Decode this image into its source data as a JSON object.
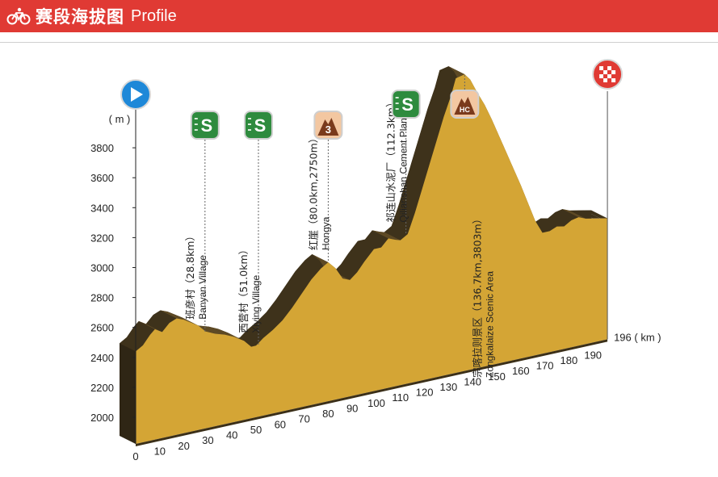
{
  "header": {
    "title_cn": "赛段海拔图",
    "title_en": "Profile",
    "bg_color": "#e03a34"
  },
  "chart_data": {
    "type": "area",
    "title": "赛段海拔图 Profile",
    "ylabel": "( m )",
    "xlabel": "( km )",
    "total_distance_label": "196",
    "ylim": [
      1850,
      3850
    ],
    "xlim": [
      0,
      196
    ],
    "yticks": [
      2000,
      2200,
      2400,
      2600,
      2800,
      3000,
      3200,
      3400,
      3600,
      3800
    ],
    "xticks": [
      0,
      10,
      20,
      30,
      40,
      50,
      60,
      70,
      80,
      90,
      100,
      110,
      120,
      130,
      140,
      150,
      160,
      170,
      180,
      190
    ],
    "grid": false,
    "fill_color": "#d4a535",
    "side_color": "#4a3b20",
    "elevation": [
      {
        "x": 0,
        "y": 2440
      },
      {
        "x": 3,
        "y": 2470
      },
      {
        "x": 6,
        "y": 2530
      },
      {
        "x": 8,
        "y": 2560
      },
      {
        "x": 11,
        "y": 2530
      },
      {
        "x": 14,
        "y": 2580
      },
      {
        "x": 17,
        "y": 2600
      },
      {
        "x": 20,
        "y": 2580
      },
      {
        "x": 23,
        "y": 2550
      },
      {
        "x": 26,
        "y": 2520
      },
      {
        "x": 29,
        "y": 2470
      },
      {
        "x": 33,
        "y": 2440
      },
      {
        "x": 37,
        "y": 2420
      },
      {
        "x": 41,
        "y": 2390
      },
      {
        "x": 45,
        "y": 2350
      },
      {
        "x": 48,
        "y": 2300
      },
      {
        "x": 50,
        "y": 2300
      },
      {
        "x": 53,
        "y": 2340
      },
      {
        "x": 57,
        "y": 2380
      },
      {
        "x": 61,
        "y": 2430
      },
      {
        "x": 65,
        "y": 2500
      },
      {
        "x": 69,
        "y": 2580
      },
      {
        "x": 73,
        "y": 2660
      },
      {
        "x": 77,
        "y": 2720
      },
      {
        "x": 80,
        "y": 2750
      },
      {
        "x": 83,
        "y": 2700
      },
      {
        "x": 86,
        "y": 2620
      },
      {
        "x": 89,
        "y": 2600
      },
      {
        "x": 92,
        "y": 2640
      },
      {
        "x": 95,
        "y": 2700
      },
      {
        "x": 99,
        "y": 2770
      },
      {
        "x": 102,
        "y": 2770
      },
      {
        "x": 105,
        "y": 2820
      },
      {
        "x": 108,
        "y": 2800
      },
      {
        "x": 110,
        "y": 2790
      },
      {
        "x": 113,
        "y": 2820
      },
      {
        "x": 116,
        "y": 2950
      },
      {
        "x": 119,
        "y": 3100
      },
      {
        "x": 122,
        "y": 3250
      },
      {
        "x": 125,
        "y": 3400
      },
      {
        "x": 128,
        "y": 3550
      },
      {
        "x": 131,
        "y": 3680
      },
      {
        "x": 133,
        "y": 3790
      },
      {
        "x": 136.7,
        "y": 3803
      },
      {
        "x": 139,
        "y": 3760
      },
      {
        "x": 142,
        "y": 3660
      },
      {
        "x": 145,
        "y": 3570
      },
      {
        "x": 148,
        "y": 3460
      },
      {
        "x": 151,
        "y": 3340
      },
      {
        "x": 154,
        "y": 3220
      },
      {
        "x": 157,
        "y": 3100
      },
      {
        "x": 160,
        "y": 2980
      },
      {
        "x": 163,
        "y": 2850
      },
      {
        "x": 166,
        "y": 2720
      },
      {
        "x": 169,
        "y": 2630
      },
      {
        "x": 172,
        "y": 2630
      },
      {
        "x": 175,
        "y": 2650
      },
      {
        "x": 178,
        "y": 2640
      },
      {
        "x": 181,
        "y": 2670
      },
      {
        "x": 184,
        "y": 2680
      },
      {
        "x": 187,
        "y": 2660
      },
      {
        "x": 190,
        "y": 2650
      },
      {
        "x": 193,
        "y": 2640
      },
      {
        "x": 196,
        "y": 2630
      }
    ],
    "annotations": [
      {
        "km": 28.8,
        "cn": "班彦村（28.8km）",
        "en": "Banyan Village",
        "icon": "sprint",
        "icon_label": "S"
      },
      {
        "km": 51.0,
        "cn": "西营村（51.0km）",
        "en": "Xiying Village",
        "icon": "sprint",
        "icon_label": "S"
      },
      {
        "km": 80.0,
        "cn": "红崖（80.0km,2750m）",
        "en": "Hongya",
        "icon": "climb-cat3",
        "icon_label": "3"
      },
      {
        "km": 112.3,
        "cn": "祁连山水泥厂（112.3km）",
        "en": "Qilianshan Cement Plant",
        "icon": "sprint",
        "icon_label": "S"
      },
      {
        "km": 136.7,
        "cn": "宗喀拉则景区（136.7km,3803m）",
        "en": "Zongkalaize Scenic Area",
        "icon": "climb-hc",
        "icon_label": "HC"
      }
    ],
    "start_icon": "start-flag-icon",
    "finish_icon": "finish-checkered-flag-icon"
  }
}
